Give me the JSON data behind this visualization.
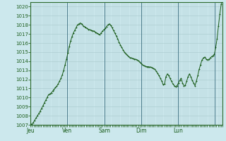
{
  "background_color": "#cce8ed",
  "line_color": "#1a5c1a",
  "marker_color": "#1a5c1a",
  "grid_color": "#a8c8cc",
  "grid_color_major": "#7aaab0",
  "axis_label_color": "#1a5c1a",
  "tick_label_color": "#1a5c1a",
  "spine_color": "#2d6a2d",
  "ylim": [
    1007,
    1020.5
  ],
  "yticks": [
    1007,
    1008,
    1009,
    1010,
    1011,
    1012,
    1013,
    1014,
    1015,
    1016,
    1017,
    1018,
    1019,
    1020
  ],
  "day_labels": [
    "Jeu",
    "Ven",
    "Sam",
    "Dim",
    "Lun",
    ""
  ],
  "day_positions": [
    0,
    24,
    48,
    72,
    96,
    120
  ],
  "total_hours": 125,
  "pressure_data": [
    1007.0,
    1007.1,
    1007.25,
    1007.5,
    1007.75,
    1008.0,
    1008.25,
    1008.5,
    1008.8,
    1009.1,
    1009.4,
    1009.7,
    1010.0,
    1010.3,
    1010.4,
    1010.5,
    1010.7,
    1010.9,
    1011.1,
    1011.25,
    1011.5,
    1011.8,
    1012.1,
    1012.5,
    1013.0,
    1013.6,
    1014.2,
    1014.9,
    1015.6,
    1016.2,
    1016.7,
    1017.1,
    1017.4,
    1017.7,
    1018.0,
    1018.1,
    1018.2,
    1018.1,
    1017.9,
    1017.8,
    1017.7,
    1017.6,
    1017.5,
    1017.45,
    1017.4,
    1017.35,
    1017.3,
    1017.2,
    1017.1,
    1017.0,
    1016.9,
    1017.1,
    1017.3,
    1017.45,
    1017.6,
    1017.8,
    1018.0,
    1018.1,
    1017.95,
    1017.7,
    1017.4,
    1017.1,
    1016.8,
    1016.5,
    1016.1,
    1015.8,
    1015.5,
    1015.25,
    1015.0,
    1014.8,
    1014.65,
    1014.5,
    1014.4,
    1014.35,
    1014.3,
    1014.25,
    1014.2,
    1014.15,
    1014.05,
    1013.9,
    1013.75,
    1013.6,
    1013.5,
    1013.45,
    1013.4,
    1013.4,
    1013.35,
    1013.35,
    1013.3,
    1013.2,
    1013.1,
    1012.9,
    1012.65,
    1012.4,
    1012.1,
    1011.8,
    1011.4,
    1011.5,
    1012.3,
    1012.6,
    1012.4,
    1012.1,
    1011.8,
    1011.5,
    1011.3,
    1011.2,
    1011.3,
    1011.6,
    1011.9,
    1012.1,
    1011.6,
    1011.3,
    1011.35,
    1011.8,
    1012.3,
    1012.6,
    1012.3,
    1011.9,
    1011.6,
    1011.3,
    1011.8,
    1012.4,
    1013.1,
    1013.6,
    1014.1,
    1014.35,
    1014.45,
    1014.25,
    1014.15,
    1014.2,
    1014.35,
    1014.5,
    1014.6,
    1014.75,
    1015.5,
    1016.5,
    1017.9,
    1019.2,
    1020.3,
    1021.0
  ]
}
